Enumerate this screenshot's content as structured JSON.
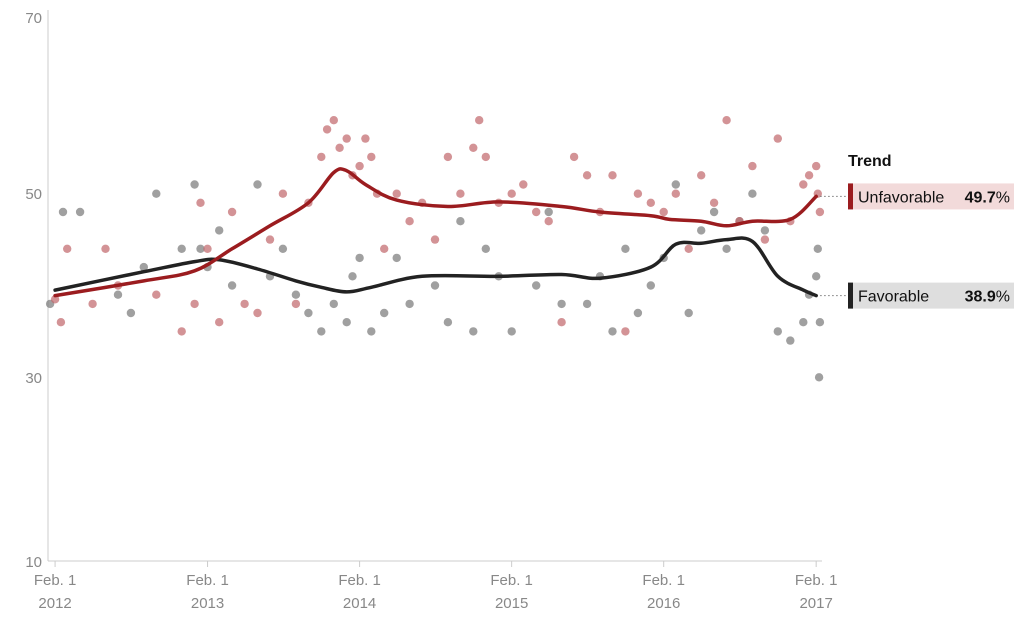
{
  "chart_data": {
    "type": "scatter",
    "title": "",
    "xlabel": "",
    "ylabel": "",
    "ylim": [
      10,
      70
    ],
    "xlim": [
      "2012-01-15",
      "2017-02-15"
    ],
    "yticks": [
      "70",
      "50",
      "30",
      "10"
    ],
    "xticks": [
      {
        "line1": "Feb. 1",
        "line2": "2012",
        "date": "2012-02-01"
      },
      {
        "line1": "Feb. 1",
        "line2": "2013",
        "date": "2013-02-01"
      },
      {
        "line1": "Feb. 1",
        "line2": "2014",
        "date": "2014-02-01"
      },
      {
        "line1": "Feb. 1",
        "line2": "2015",
        "date": "2015-02-01"
      },
      {
        "line1": "Feb. 1",
        "line2": "2016",
        "date": "2016-02-01"
      },
      {
        "line1": "Feb. 1",
        "line2": "2017",
        "date": "2017-02-01"
      }
    ],
    "grid": false,
    "legend_title": "Trend",
    "legend_placement": "right",
    "series": [
      {
        "name": "Unfavorable",
        "latest": "49.7",
        "unit": "%",
        "color": "#9b1c1f",
        "point_color": "#c0656a",
        "trend": [
          [
            "2012-02-01",
            38.9
          ],
          [
            "2012-09-01",
            40.5
          ],
          [
            "2013-01-01",
            41.6
          ],
          [
            "2013-04-01",
            44.0
          ],
          [
            "2013-07-01",
            46.5
          ],
          [
            "2013-10-01",
            49.0
          ],
          [
            "2013-12-01",
            52.3
          ],
          [
            "2014-01-01",
            52.5
          ],
          [
            "2014-02-15",
            51.0
          ],
          [
            "2014-05-01",
            49.3
          ],
          [
            "2014-09-01",
            48.6
          ],
          [
            "2015-01-01",
            49.1
          ],
          [
            "2015-06-01",
            48.6
          ],
          [
            "2015-09-01",
            48.0
          ],
          [
            "2016-01-01",
            47.6
          ],
          [
            "2016-02-15",
            47.2
          ],
          [
            "2016-05-01",
            47.0
          ],
          [
            "2016-07-01",
            46.5
          ],
          [
            "2016-09-01",
            47.0
          ],
          [
            "2016-12-01",
            47.2
          ],
          [
            "2017-02-01",
            49.7
          ]
        ],
        "points": [
          [
            "2012-02-01",
            38.5
          ],
          [
            "2012-02-15",
            36
          ],
          [
            "2012-03-01",
            44
          ],
          [
            "2012-05-01",
            38
          ],
          [
            "2012-06-01",
            44
          ],
          [
            "2012-07-01",
            40
          ],
          [
            "2012-10-01",
            39
          ],
          [
            "2012-12-01",
            35
          ],
          [
            "2013-01-01",
            38
          ],
          [
            "2013-01-15",
            49
          ],
          [
            "2013-02-01",
            44
          ],
          [
            "2013-03-01",
            36
          ],
          [
            "2013-04-01",
            48
          ],
          [
            "2013-05-01",
            38
          ],
          [
            "2013-06-01",
            37
          ],
          [
            "2013-07-01",
            45
          ],
          [
            "2013-08-01",
            50
          ],
          [
            "2013-09-01",
            38
          ],
          [
            "2013-10-01",
            49
          ],
          [
            "2013-11-01",
            54
          ],
          [
            "2013-11-15",
            57
          ],
          [
            "2013-12-01",
            58
          ],
          [
            "2013-12-15",
            55
          ],
          [
            "2014-01-01",
            56
          ],
          [
            "2014-01-15",
            52
          ],
          [
            "2014-02-01",
            53
          ],
          [
            "2014-02-15",
            56
          ],
          [
            "2014-03-01",
            54
          ],
          [
            "2014-03-15",
            50
          ],
          [
            "2014-04-01",
            44
          ],
          [
            "2014-05-01",
            50
          ],
          [
            "2014-06-01",
            47
          ],
          [
            "2014-07-01",
            49
          ],
          [
            "2014-08-01",
            45
          ],
          [
            "2014-09-01",
            54
          ],
          [
            "2014-10-01",
            50
          ],
          [
            "2014-11-01",
            55
          ],
          [
            "2014-11-15",
            58
          ],
          [
            "2014-12-01",
            54
          ],
          [
            "2015-01-01",
            49
          ],
          [
            "2015-02-01",
            50
          ],
          [
            "2015-03-01",
            51
          ],
          [
            "2015-04-01",
            48
          ],
          [
            "2015-05-01",
            47
          ],
          [
            "2015-06-01",
            36
          ],
          [
            "2015-07-01",
            54
          ],
          [
            "2015-08-01",
            52
          ],
          [
            "2015-09-01",
            48
          ],
          [
            "2015-10-01",
            52
          ],
          [
            "2015-11-01",
            35
          ],
          [
            "2015-12-01",
            50
          ],
          [
            "2016-01-01",
            49
          ],
          [
            "2016-02-01",
            48
          ],
          [
            "2016-03-01",
            50
          ],
          [
            "2016-04-01",
            44
          ],
          [
            "2016-05-01",
            52
          ],
          [
            "2016-06-01",
            49
          ],
          [
            "2016-07-01",
            58
          ],
          [
            "2016-08-01",
            47
          ],
          [
            "2016-09-01",
            53
          ],
          [
            "2016-10-01",
            45
          ],
          [
            "2016-11-01",
            56
          ],
          [
            "2016-12-01",
            47
          ],
          [
            "2017-01-01",
            51
          ],
          [
            "2017-01-15",
            52
          ],
          [
            "2017-02-01",
            53
          ],
          [
            "2017-02-05",
            50
          ],
          [
            "2017-02-10",
            48
          ]
        ]
      },
      {
        "name": "Favorable",
        "latest": "38.9",
        "unit": "%",
        "color": "#222222",
        "point_color": "#777777",
        "trend": [
          [
            "2012-02-01",
            39.5
          ],
          [
            "2012-09-01",
            41.5
          ],
          [
            "2013-01-01",
            42.6
          ],
          [
            "2013-03-01",
            42.8
          ],
          [
            "2013-06-01",
            41.8
          ],
          [
            "2013-09-01",
            40.5
          ],
          [
            "2013-11-01",
            39.8
          ],
          [
            "2014-01-01",
            39.3
          ],
          [
            "2014-03-01",
            39.8
          ],
          [
            "2014-07-01",
            41.0
          ],
          [
            "2015-01-01",
            41.0
          ],
          [
            "2015-06-01",
            41.2
          ],
          [
            "2015-09-01",
            40.8
          ],
          [
            "2016-01-01",
            42.0
          ],
          [
            "2016-03-01",
            44.5
          ],
          [
            "2016-05-01",
            44.6
          ],
          [
            "2016-07-01",
            45.0
          ],
          [
            "2016-09-01",
            44.8
          ],
          [
            "2016-11-01",
            41.0
          ],
          [
            "2017-01-01",
            39.5
          ],
          [
            "2017-02-01",
            38.9
          ]
        ],
        "points": [
          [
            "2012-01-20",
            38
          ],
          [
            "2012-02-20",
            48
          ],
          [
            "2012-04-01",
            48
          ],
          [
            "2012-07-01",
            39
          ],
          [
            "2012-08-01",
            37
          ],
          [
            "2012-09-01",
            42
          ],
          [
            "2012-10-01",
            50
          ],
          [
            "2012-12-01",
            44
          ],
          [
            "2013-01-01",
            51
          ],
          [
            "2013-01-15",
            44
          ],
          [
            "2013-02-01",
            42
          ],
          [
            "2013-03-01",
            46
          ],
          [
            "2013-04-01",
            40
          ],
          [
            "2013-06-01",
            51
          ],
          [
            "2013-07-01",
            41
          ],
          [
            "2013-08-01",
            44
          ],
          [
            "2013-09-01",
            39
          ],
          [
            "2013-10-01",
            37
          ],
          [
            "2013-11-01",
            35
          ],
          [
            "2013-12-01",
            38
          ],
          [
            "2014-01-01",
            36
          ],
          [
            "2014-01-15",
            41
          ],
          [
            "2014-02-01",
            43
          ],
          [
            "2014-03-01",
            35
          ],
          [
            "2014-04-01",
            37
          ],
          [
            "2014-05-01",
            43
          ],
          [
            "2014-06-01",
            38
          ],
          [
            "2014-08-01",
            40
          ],
          [
            "2014-09-01",
            36
          ],
          [
            "2014-10-01",
            47
          ],
          [
            "2014-11-01",
            35
          ],
          [
            "2014-12-01",
            44
          ],
          [
            "2015-01-01",
            41
          ],
          [
            "2015-02-01",
            35
          ],
          [
            "2015-04-01",
            40
          ],
          [
            "2015-05-01",
            48
          ],
          [
            "2015-06-01",
            38
          ],
          [
            "2015-08-01",
            38
          ],
          [
            "2015-09-01",
            41
          ],
          [
            "2015-10-01",
            35
          ],
          [
            "2015-11-01",
            44
          ],
          [
            "2015-12-01",
            37
          ],
          [
            "2016-01-01",
            40
          ],
          [
            "2016-02-01",
            43
          ],
          [
            "2016-03-01",
            51
          ],
          [
            "2016-04-01",
            37
          ],
          [
            "2016-05-01",
            46
          ],
          [
            "2016-06-01",
            48
          ],
          [
            "2016-07-01",
            44
          ],
          [
            "2016-08-01",
            47
          ],
          [
            "2016-09-01",
            50
          ],
          [
            "2016-10-01",
            46
          ],
          [
            "2016-11-01",
            35
          ],
          [
            "2016-12-01",
            34
          ],
          [
            "2017-01-01",
            36
          ],
          [
            "2017-01-15",
            39
          ],
          [
            "2017-02-01",
            41
          ],
          [
            "2017-02-05",
            44
          ],
          [
            "2017-02-08",
            30
          ],
          [
            "2017-02-10",
            36
          ]
        ]
      }
    ]
  }
}
